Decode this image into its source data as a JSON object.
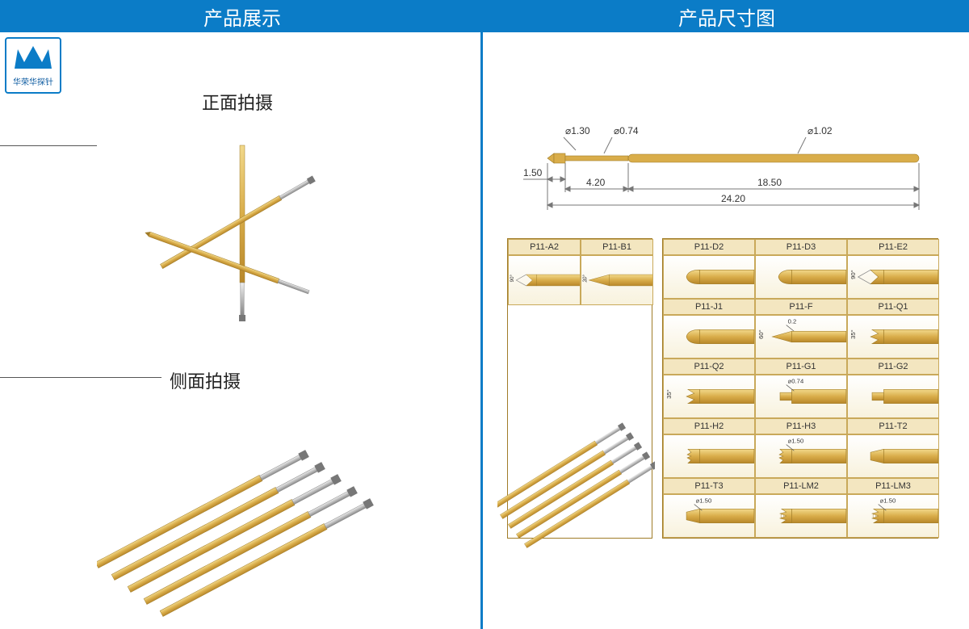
{
  "colors": {
    "brand_blue": "#0b7cc7",
    "gold": "#d9ad4a",
    "gold_dark": "#a07c28",
    "gold_light": "#f3e6c0",
    "silver": "#c8c8c8",
    "text": "#222222",
    "dim_gray": "#777777"
  },
  "header": {
    "left_title": "产品展示",
    "right_title": "产品尺寸图"
  },
  "logo_text": "华荣华探针",
  "left_panel": {
    "front_label": "正面拍摄",
    "side_label": "侧面拍摄"
  },
  "dimensions": {
    "tip_dia": "⌀1.30",
    "shaft_dia": "⌀0.74",
    "body_dia": "⌀1.02",
    "tip_len": "1.50",
    "shaft_len": "4.20",
    "body_len": "18.50",
    "total_len": "24.20"
  },
  "tip_groups": {
    "left_pair": [
      {
        "code": "P11-A2",
        "angle": "90°"
      },
      {
        "code": "P11-B1",
        "angle": "30°"
      }
    ],
    "grid": [
      [
        {
          "code": "P11-D2"
        },
        {
          "code": "P11-D3"
        },
        {
          "code": "P11-E2",
          "angle": "90°"
        }
      ],
      [
        {
          "code": "P11-J1"
        },
        {
          "code": "P11-F",
          "angle": "60°",
          "note": "0.2"
        },
        {
          "code": "P11-Q1",
          "angle": "35°"
        }
      ],
      [
        {
          "code": "P11-Q2",
          "angle": "35°"
        },
        {
          "code": "P11-G1",
          "note": "⌀0.74"
        },
        {
          "code": "P11-G2"
        }
      ],
      [
        {
          "code": "P11-H2"
        },
        {
          "code": "P11-H3",
          "note": "⌀1.50"
        },
        {
          "code": "P11-T2"
        }
      ],
      [
        {
          "code": "P11-T3",
          "note": "⌀1.50"
        },
        {
          "code": "P11-LM2"
        },
        {
          "code": "P11-LM3",
          "note": "⌀1.50"
        }
      ]
    ]
  },
  "tip_shapes": {
    "P11-A2": "cup90",
    "P11-B1": "cone30",
    "P11-D2": "dome",
    "P11-D3": "dome",
    "P11-E2": "cup90",
    "P11-J1": "dome",
    "P11-F": "spear60",
    "P11-Q1": "crown35",
    "P11-Q2": "crown35",
    "P11-G1": "step",
    "P11-G2": "step",
    "P11-H2": "serrated",
    "P11-H3": "serrated",
    "P11-T2": "chisel",
    "P11-T3": "chisel",
    "P11-LM2": "multi",
    "P11-LM3": "multi"
  }
}
